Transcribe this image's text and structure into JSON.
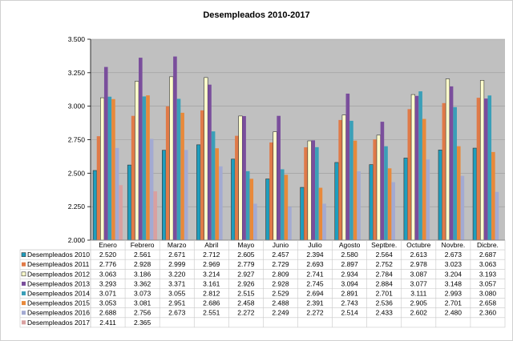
{
  "chart_data": {
    "type": "bar",
    "title": "Desempleados 2010-2017",
    "xlabel": "",
    "ylabel": "",
    "ylim": [
      2000,
      3500
    ],
    "yticks": [
      2000,
      2250,
      2500,
      2750,
      3000,
      3250,
      3500
    ],
    "ytick_labels": [
      "2.000",
      "2.250",
      "2.500",
      "2.750",
      "3.000",
      "3.250",
      "3.500"
    ],
    "grid": true,
    "legend": "data-table-below",
    "background": "#c0c0c0",
    "categories": [
      "Enero",
      "Febrero",
      "Marzo",
      "Abril",
      "Mayo",
      "Junio",
      "Julio",
      "Agosto",
      "Septbre.",
      "Octubre",
      "Novbre.",
      "Dicbre."
    ],
    "series": [
      {
        "name": "Desempleados 2010",
        "color": "#1f9dbd",
        "values": [
          2520,
          2561,
          2671,
          2712,
          2605,
          2457,
          2394,
          2580,
          2564,
          2613,
          2673,
          2687
        ],
        "labels": [
          "2.520",
          "2.561",
          "2.671",
          "2.712",
          "2.605",
          "2.457",
          "2.394",
          "2.580",
          "2.564",
          "2.613",
          "2.673",
          "2.687"
        ]
      },
      {
        "name": "Desempleados 2011",
        "color": "#e07a48",
        "values": [
          2776,
          2928,
          2999,
          2969,
          2779,
          2729,
          2693,
          2897,
          2752,
          2978,
          3023,
          3063
        ],
        "labels": [
          "2.776",
          "2.928",
          "2.999",
          "2.969",
          "2.779",
          "2.729",
          "2.693",
          "2.897",
          "2.752",
          "2.978",
          "3.023",
          "3.063"
        ]
      },
      {
        "name": "Desempleados 2012",
        "color": "#ffffcc",
        "values": [
          3063,
          3186,
          3220,
          3214,
          2927,
          2809,
          2741,
          2934,
          2784,
          3087,
          3204,
          3193
        ],
        "labels": [
          "3.063",
          "3.186",
          "3.220",
          "3.214",
          "2.927",
          "2.809",
          "2.741",
          "2.934",
          "2.784",
          "3.087",
          "3.204",
          "3.193"
        ]
      },
      {
        "name": "Desempleados 2013",
        "color": "#7a4e9c",
        "values": [
          3293,
          3362,
          3371,
          3161,
          2926,
          2928,
          2745,
          3094,
          2884,
          3077,
          3148,
          3057
        ],
        "labels": [
          "3.293",
          "3.362",
          "3.371",
          "3.161",
          "2.926",
          "2.928",
          "2.745",
          "3.094",
          "2.884",
          "3.077",
          "3.148",
          "3.057"
        ]
      },
      {
        "name": "Desempleados 2014",
        "color": "#3a9fb8",
        "values": [
          3071,
          3073,
          3055,
          2812,
          2515,
          2529,
          2694,
          2891,
          2701,
          3111,
          2993,
          3080
        ],
        "labels": [
          "3.071",
          "3.073",
          "3.055",
          "2.812",
          "2.515",
          "2.529",
          "2.694",
          "2.891",
          "2.701",
          "3.111",
          "2.993",
          "3.080"
        ]
      },
      {
        "name": "Desempleados 2015",
        "color": "#e8893a",
        "values": [
          3053,
          3081,
          2951,
          2686,
          2458,
          2488,
          2391,
          2743,
          2536,
          2905,
          2701,
          2658
        ],
        "labels": [
          "3.053",
          "3.081",
          "2.951",
          "2.686",
          "2.458",
          "2.488",
          "2.391",
          "2.743",
          "2.536",
          "2.905",
          "2.701",
          "2.658"
        ]
      },
      {
        "name": "Desempleados 2016",
        "color": "#a3aad2",
        "values": [
          2688,
          2756,
          2673,
          2551,
          2272,
          2249,
          2272,
          2514,
          2433,
          2602,
          2480,
          2360
        ],
        "labels": [
          "2.688",
          "2.756",
          "2.673",
          "2.551",
          "2.272",
          "2.249",
          "2.272",
          "2.514",
          "2.433",
          "2.602",
          "2.480",
          "2.360"
        ]
      },
      {
        "name": "Desempleados 2017",
        "color": "#d9a0a0",
        "values": [
          2411,
          2365,
          null,
          null,
          null,
          null,
          null,
          null,
          null,
          null,
          null,
          null
        ],
        "labels": [
          "2.411",
          "2.365",
          "",
          "",
          "",
          "",
          "",
          "",
          "",
          "",
          "",
          ""
        ]
      }
    ]
  }
}
